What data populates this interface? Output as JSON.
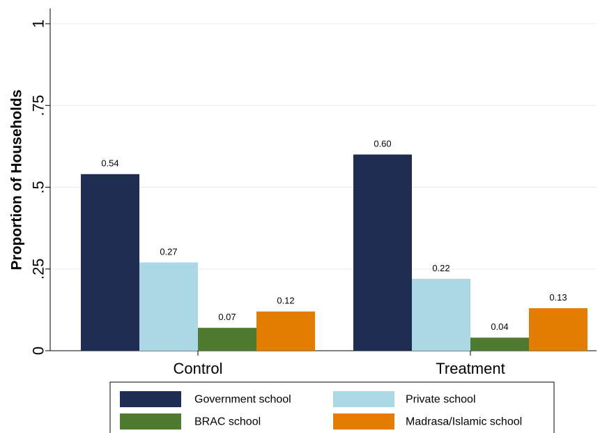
{
  "chart_data": {
    "type": "bar",
    "ylabel": "Proportion of Households",
    "xlabel": "",
    "ylim": [
      0,
      1
    ],
    "yticks": [
      {
        "value": 0,
        "label": "0"
      },
      {
        "value": 0.25,
        "label": ".25"
      },
      {
        "value": 0.5,
        "label": ".5"
      },
      {
        "value": 0.75,
        "label": ".75"
      },
      {
        "value": 1,
        "label": "1"
      }
    ],
    "categories": [
      "Control",
      "Treatment"
    ],
    "series": [
      {
        "name": "Government school",
        "values": [
          0.54,
          0.6
        ],
        "labels": [
          "0.54",
          "0.60"
        ],
        "color": "#1f2d52"
      },
      {
        "name": "Private school",
        "values": [
          0.27,
          0.22
        ],
        "labels": [
          "0.27",
          "0.22"
        ],
        "color": "#acd8e6"
      },
      {
        "name": "BRAC school",
        "values": [
          0.07,
          0.04
        ],
        "labels": [
          "0.07",
          "0.04"
        ],
        "color": "#4e7a31"
      },
      {
        "name": "Madrasa/Islamic school",
        "values": [
          0.12,
          0.13
        ],
        "labels": [
          "0.12",
          "0.13"
        ],
        "color": "#e37c00"
      }
    ],
    "grid": true,
    "legend_position": "bottom"
  }
}
